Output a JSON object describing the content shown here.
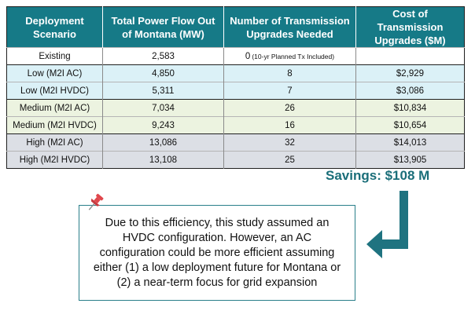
{
  "table": {
    "headers": [
      "Deployment Scenario",
      "Total Power Flow Out of Montana (MW)",
      "Number of Transmission Upgrades Needed",
      "Cost of Transmission Upgrades ($M)"
    ],
    "rows": [
      {
        "scenario": "Existing",
        "power": "2,583",
        "upgrades": "0",
        "upgrades_note": "(10-yr Planned Tx Included)",
        "cost": ""
      },
      {
        "scenario": "Low (M2I AC)",
        "power": "4,850",
        "upgrades": "8",
        "cost": "$2,929"
      },
      {
        "scenario": "Low (M2I HVDC)",
        "power": "5,311",
        "upgrades": "7",
        "cost": "$3,086"
      },
      {
        "scenario": "Medium (M2I AC)",
        "power": "7,034",
        "upgrades": "26",
        "cost": "$10,834"
      },
      {
        "scenario": "Medium (M2I HVDC)",
        "power": "9,243",
        "upgrades": "16",
        "cost": "$10,654"
      },
      {
        "scenario": "High (M2I AC)",
        "power": "13,086",
        "upgrades": "32",
        "cost": "$14,013"
      },
      {
        "scenario": "High (M2I HVDC)",
        "power": "13,108",
        "upgrades": "25",
        "cost": "$13,905"
      }
    ]
  },
  "savings_label": "Savings: $108 M",
  "callout_text": "Due to this efficiency, this study assumed an HVDC configuration. However, an AC configuration could be more efficient assuming either (1) a low deployment future for Montana or (2) a near-term focus for grid expansion",
  "icons": {
    "pin": "pushpin-icon",
    "arrow": "elbow-arrow-icon"
  },
  "colors": {
    "header_bg": "#167a87",
    "low_bg": "#dbf1f7",
    "medium_bg": "#ecf3e0",
    "high_bg": "#dcdfe5",
    "accent_text": "#1a6e79",
    "arrow": "#1f7380",
    "pin": "#e0474c"
  }
}
